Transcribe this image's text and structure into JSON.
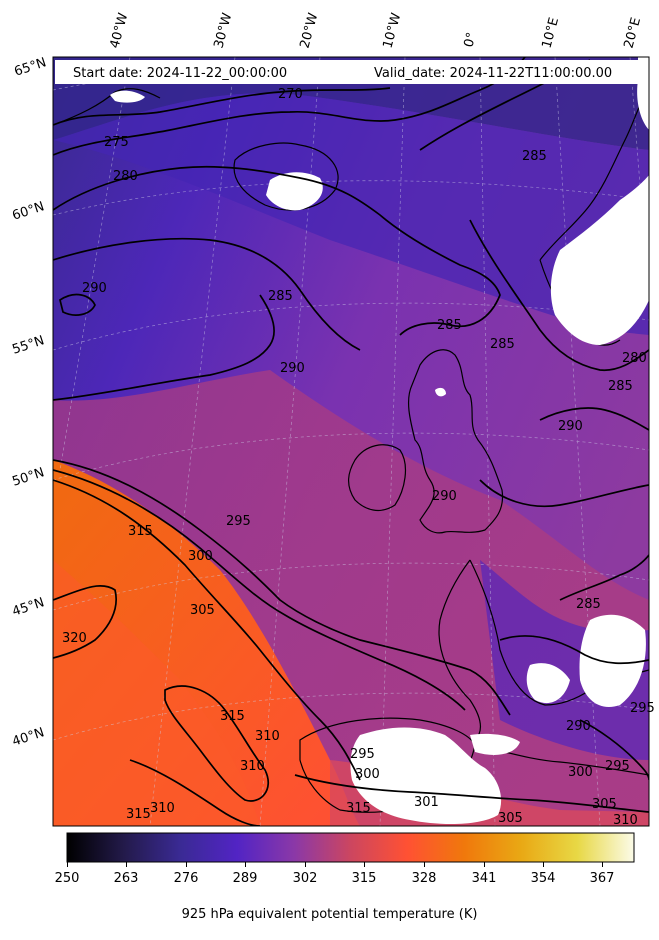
{
  "header": {
    "start_date": "Start date: 2024-11-22_00:00:00",
    "valid_date": "Valid_date: 2024-11-22T11:00:00.00"
  },
  "longitude_labels": [
    "40°W",
    "30°W",
    "20°W",
    "10°W",
    "0°",
    "10°E",
    "20°E"
  ],
  "latitude_labels": [
    "65°N",
    "60°N",
    "55°N",
    "50°N",
    "45°N",
    "40°N"
  ],
  "contour_labels": [
    "270",
    "275",
    "280",
    "285",
    "285",
    "285",
    "285",
    "290",
    "290",
    "290",
    "290",
    "295",
    "295",
    "300",
    "300",
    "305",
    "305",
    "310",
    "310",
    "310",
    "315",
    "315",
    "315",
    "320",
    "285",
    "280",
    "295",
    "305",
    "310",
    "300",
    "315",
    "301",
    "290",
    "285",
    "295"
  ],
  "colorbar": {
    "ticks": [
      "250",
      "263",
      "276",
      "289",
      "302",
      "315",
      "328",
      "341",
      "354",
      "367"
    ],
    "title": "925 hPa equivalent potential temperature (K)",
    "colormap": [
      "#000000",
      "#231a4a",
      "#3a2a94",
      "#5224c4",
      "#8a38a8",
      "#cc4660",
      "#ff5133",
      "#f0780c",
      "#e9a814",
      "#e8d845",
      "#fbfbe8"
    ]
  }
}
